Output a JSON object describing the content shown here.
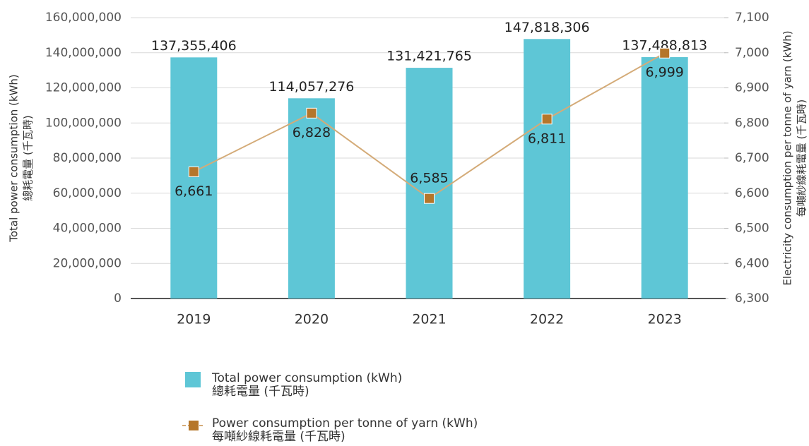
{
  "chart_data": {
    "type": "bar_line",
    "ylabel": [
      "Total power consumption (kWh)",
      "總耗電量 (千瓦時)"
    ],
    "y2label": [
      "Electricity consumption per tonne of yarn (kWh)",
      "每噸紗線耗電量 (千瓦時)"
    ],
    "categories": [
      "2019",
      "2020",
      "2021",
      "2022",
      "2023"
    ],
    "ylim": [
      0,
      160000000
    ],
    "yticks": [
      0,
      {
        "value": 20000000,
        "label": "20,000,000"
      },
      {
        "value": 40000000,
        "label": "40,000,000"
      },
      {
        "value": 60000000,
        "label": "60,000,000"
      },
      {
        "value": 80000000,
        "label": "80,000,000"
      },
      {
        "value": 100000000,
        "label": "100,000,000"
      },
      {
        "value": 120000000,
        "label": "120,000,000"
      },
      {
        "value": 140000000,
        "label": "140,000,000"
      },
      {
        "value": 160000000,
        "label": "160,000,000"
      }
    ],
    "y2lim": [
      6300,
      7100
    ],
    "y2ticks": [
      {
        "value": 6300,
        "label": "6,300"
      },
      {
        "value": 6400,
        "label": "6,400"
      },
      {
        "value": 6500,
        "label": "6,500"
      },
      {
        "value": 6600,
        "label": "6,600"
      },
      {
        "value": 6700,
        "label": "6,700"
      },
      {
        "value": 6800,
        "label": "6,800"
      },
      {
        "value": 6900,
        "label": "6,900"
      },
      {
        "value": 7000,
        "label": "7,000"
      },
      {
        "value": 7100,
        "label": "7,100"
      }
    ],
    "grid": true,
    "legend": "bottom",
    "series": [
      {
        "name": [
          "Total power consumption (kWh)",
          "總耗電量 (千瓦時)"
        ],
        "kind": "bar",
        "color": "#5ec6d6",
        "values": [
          137355406,
          114057276,
          131421765,
          147818306,
          137488813
        ],
        "value_labels": [
          "137,355,406",
          "114,057,276",
          "131,421,765",
          "147,818,306",
          "137,488,813"
        ]
      },
      {
        "name": [
          "Power consumption per tonne of yarn (kWh)",
          "每噸紗線耗電量 (千瓦時)"
        ],
        "kind": "line",
        "axis": "y2",
        "color": "#b5762a",
        "line_color": "#d4ab78",
        "values": [
          6661,
          6828,
          6585,
          6811,
          6999
        ],
        "value_labels": [
          "6,661",
          "6,828",
          "6,585",
          "6,811",
          "6,999"
        ]
      }
    ]
  }
}
